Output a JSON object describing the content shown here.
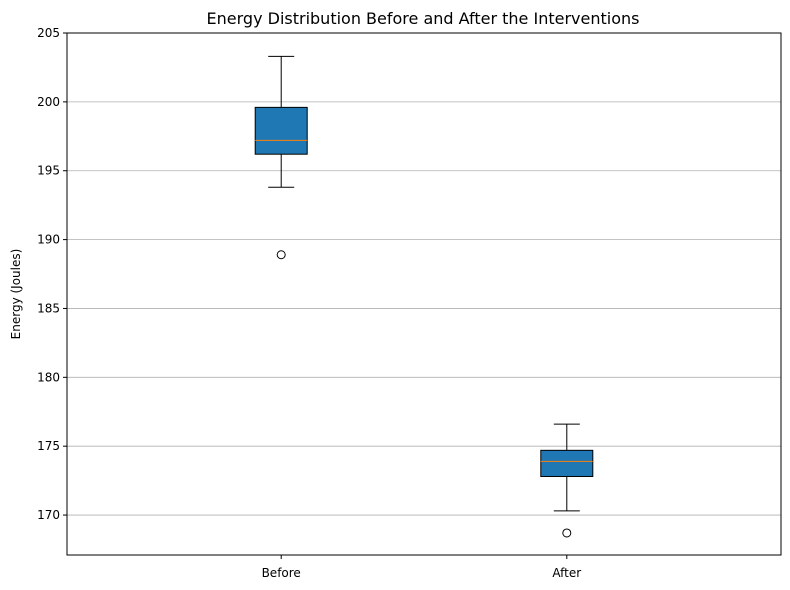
{
  "chart_data": {
    "type": "box",
    "title": "Energy Distribution Before and After the Interventions",
    "xlabel": "",
    "ylabel": "Energy (Joules)",
    "ylim": [
      167.1,
      205
    ],
    "yticks": [
      170,
      175,
      180,
      185,
      190,
      195,
      200,
      205
    ],
    "grid": "horizontal",
    "box_color": "#1f77b4",
    "median_color": "#ff7f0e",
    "boxes": [
      {
        "label": "Before",
        "whisker_low": 193.8,
        "q1": 196.2,
        "median": 197.2,
        "q3": 199.6,
        "whisker_high": 203.3,
        "outliers": [
          188.9
        ]
      },
      {
        "label": "After",
        "whisker_low": 170.3,
        "q1": 172.8,
        "median": 173.9,
        "q3": 174.7,
        "whisker_high": 176.6,
        "outliers": [
          168.7
        ]
      }
    ]
  }
}
